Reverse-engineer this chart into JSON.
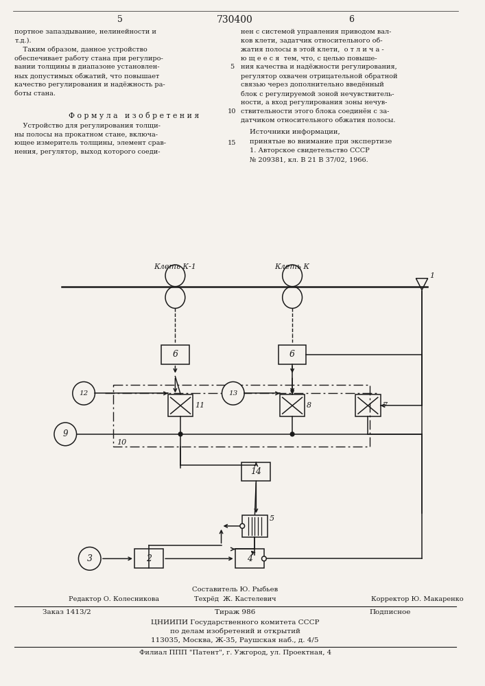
{
  "page_number_left": "5",
  "patent_number": "730400",
  "page_number_right": "6",
  "col_left_text": [
    "портное запаздывание, нелинейности и",
    "т.д.).",
    "    Таким образом, данное устройство",
    "обеспечивает работу стана при регулиро-",
    "вании толщины в диапазоне установлен-",
    "ных допустимых обжатий, что повышает",
    "качество регулирования и надёжность ра-",
    "боты стана."
  ],
  "col_right_text": [
    "нен с системой управления приводом вал-",
    "ков клети, задатчик относительного об-",
    "жатия полосы в этой клети,  о т л и ч а -",
    "ю щ е е с я  тем, что, с целью повыше-",
    "ния качества и надёжности регулирования,",
    "регулятор охвачен отрицательной обратной",
    "связью через дополнительно введённый",
    "блок с регулируемой зоной нечувствитель-",
    "ности, а вход регулирования зоны нечув-",
    "ствительности этого блока соединён с за-",
    "датчиком относительного обжатия полосы."
  ],
  "formula_title": "Ф о р м у л а   и з о б р е т е н и я",
  "formula_text": [
    "    Устройство для регулирования толщи-",
    "ны полосы на прокатном стане, включа-",
    "ющее измеритель толщины, элемент срав-",
    "нения, регулятор, выход которого соеди-"
  ],
  "sources_title": "Источники информации,",
  "sources_subtitle": "принятые во внимание при экспертизе",
  "sources_text": [
    "1. Авторское свидетельство СССР",
    "№ 209381, кл. В 21 В 37/02, 1966."
  ],
  "diagram_label_k1": "Клеть К-1",
  "diagram_label_k": "Клеть К",
  "diagram_label_1": "1",
  "footer_composer": "Составитель Ю. Рыбьев",
  "footer_editor": "Редактор О. Колесникова",
  "footer_techred": "Техрёд  Ж. Кастелевич",
  "footer_corrector": "Корректор Ю. Макаренко",
  "footer_order": "Заказ 1413/2",
  "footer_tirazh": "Тираж 986",
  "footer_podpisnoe": "Подписное",
  "footer_org1": "ЦНИИПИ Государственного комитета СССР",
  "footer_org2": "по делам изобретений и открытий",
  "footer_org3": "113035, Москва, Ж-35, Раушская наб., д. 4/5",
  "footer_filial": "Филиал ППП \"Патент\", г. Ужгород, ул. Проектная, 4",
  "bg_color": "#f5f2ed",
  "text_color": "#1a1a1a"
}
